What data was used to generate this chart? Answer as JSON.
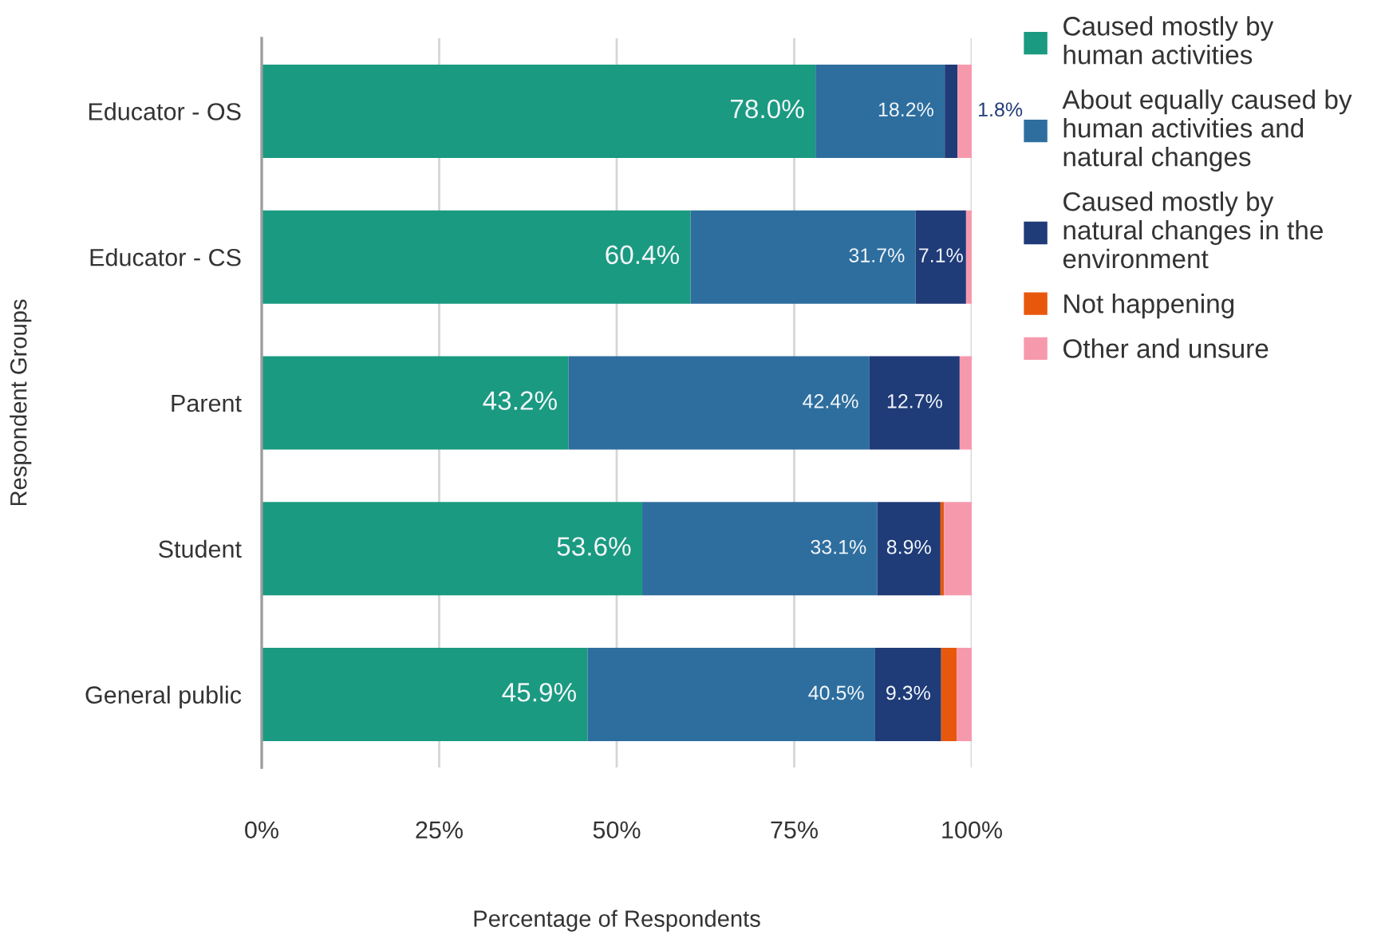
{
  "chart_data": {
    "type": "bar",
    "orientation": "horizontal",
    "stacked": true,
    "xlabel": "Percentage of Respondents",
    "ylabel": "Respondent Groups",
    "categories": [
      "Educator - OS",
      "Educator - CS",
      "Parent",
      "Student",
      "General public"
    ],
    "series": [
      {
        "name": "Caused mostly by human activities",
        "color": "#1a9a80",
        "values": [
          78.0,
          60.4,
          43.2,
          53.6,
          45.9
        ],
        "value_labels": [
          "78.0%",
          "60.4%",
          "43.2%",
          "53.6%",
          "45.9%"
        ]
      },
      {
        "name": "About equally caused by human activities and natural changes",
        "color": "#2e6e9e",
        "values": [
          18.2,
          31.7,
          42.4,
          33.1,
          40.5
        ],
        "value_labels": [
          "18.2%",
          "31.7%",
          "42.4%",
          "33.1%",
          "40.5%"
        ]
      },
      {
        "name": "Caused mostly by natural changes in the environment",
        "color": "#1f3b78",
        "values": [
          1.8,
          7.1,
          12.7,
          8.9,
          9.3
        ],
        "value_labels": [
          "1.8%",
          "7.1%",
          "12.7%",
          "8.9%",
          "9.3%"
        ]
      },
      {
        "name": "Not happening",
        "color": "#e8580c",
        "values": [
          null,
          null,
          null,
          0.5,
          2.2
        ]
      },
      {
        "name": "Other and unsure",
        "color": "#f799ad",
        "values": [
          2.0,
          0.8,
          1.7,
          3.9,
          2.1
        ]
      }
    ],
    "xlim": [
      0,
      100
    ],
    "xticks": [
      {
        "value": 0,
        "label": "0%"
      },
      {
        "value": 25,
        "label": "25%"
      },
      {
        "value": 50,
        "label": "50%"
      },
      {
        "value": 75,
        "label": "75%"
      },
      {
        "value": 100,
        "label": "100%"
      }
    ],
    "grid": "x",
    "legend": "right"
  }
}
